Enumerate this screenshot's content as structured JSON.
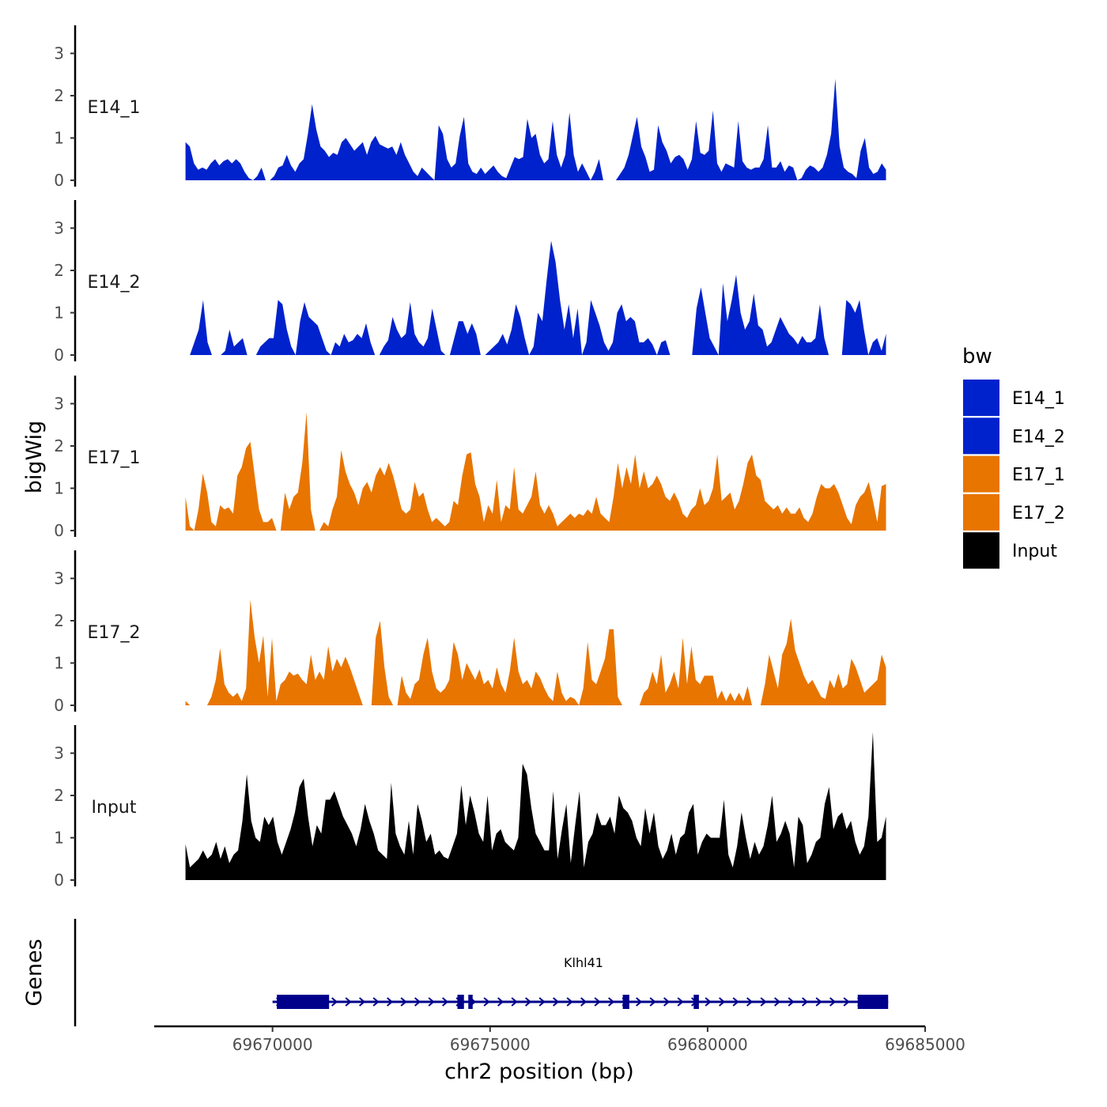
{
  "chart_data": {
    "type": "area",
    "title": "",
    "ylabel": "bigWig",
    "xlabel": "chr2 position (bp)",
    "genes_label": "Genes",
    "gene_name": "Klhl41",
    "x_range": [
      69667280,
      69685000
    ],
    "data_x_range": [
      69668000,
      69684100
    ],
    "ylim": [
      0,
      3.6
    ],
    "y_ticks": [
      0,
      1,
      2,
      3
    ],
    "x_ticks": [
      69670000,
      69675000,
      69680000,
      69685000
    ],
    "x_tick_labels": [
      "69670000",
      "69675000",
      "69680000",
      "69685000"
    ],
    "legend": {
      "title": "bw",
      "entries": [
        {
          "label": "E14_1",
          "color": "#0022CC"
        },
        {
          "label": "E14_2",
          "color": "#0022CC"
        },
        {
          "label": "E17_1",
          "color": "#E87500"
        },
        {
          "label": "E17_2",
          "color": "#E87500"
        },
        {
          "label": "Input",
          "color": "#000000"
        }
      ]
    },
    "series": [
      {
        "name": "E14_1",
        "color": "#0022CC",
        "values": [
          0.9,
          0.8,
          0.4,
          0.25,
          0.3,
          0.25,
          0.4,
          0.5,
          0.35,
          0.45,
          0.5,
          0.4,
          0.5,
          0.4,
          0.2,
          0.05,
          0,
          0.1,
          0.3,
          0,
          0,
          0.1,
          0.3,
          0.35,
          0.6,
          0.35,
          0.2,
          0.4,
          0.5,
          1.1,
          1.8,
          1.2,
          0.8,
          0.7,
          0.55,
          0.65,
          0.6,
          0.9,
          1,
          0.85,
          0.7,
          0.8,
          0.9,
          0.6,
          0.9,
          1.05,
          0.85,
          0.8,
          0.75,
          0.8,
          0.6,
          0.9,
          0.6,
          0.4,
          0.2,
          0.1,
          0.3,
          0.2,
          0.1,
          0,
          1.3,
          1.1,
          0.5,
          0.3,
          0.4,
          1.05,
          1.5,
          0.4,
          0.2,
          0.15,
          0.3,
          0.15,
          0.25,
          0.35,
          0.2,
          0.1,
          0.05,
          0.3,
          0.55,
          0.5,
          0.55,
          1.45,
          1,
          1.1,
          0.6,
          0.4,
          0.5,
          1.4,
          0.6,
          0.3,
          0.6,
          1.6,
          0.6,
          0.2,
          0.4,
          0.2,
          0,
          0.2,
          0.5,
          0,
          0,
          0,
          0,
          0.15,
          0.3,
          0.6,
          1.05,
          1.5,
          0.8,
          0.55,
          0.2,
          0.25,
          1.3,
          0.9,
          0.7,
          0.4,
          0.55,
          0.6,
          0.5,
          0.25,
          0.5,
          1.4,
          0.65,
          0.6,
          0.7,
          1.65,
          0.4,
          0.2,
          0.4,
          0.35,
          0.3,
          1.4,
          0.45,
          0.3,
          0.25,
          0.3,
          0.3,
          0.5,
          1.3,
          0.3,
          0.3,
          0.45,
          0.2,
          0.35,
          0.3,
          0,
          0.05,
          0.25,
          0.35,
          0.3,
          0.2,
          0.3,
          0.6,
          1.1,
          2.4,
          0.8,
          0.3,
          0.2,
          0.15,
          0.05,
          0.7,
          1,
          0.3,
          0.15,
          0.2,
          0.4,
          0.25
        ]
      },
      {
        "name": "E14_2",
        "color": "#0022CC",
        "values": [
          0,
          0,
          0.3,
          0.6,
          1.3,
          0.3,
          0,
          0,
          0,
          0.1,
          0.6,
          0.2,
          0.3,
          0.4,
          0,
          0,
          0,
          0.2,
          0.3,
          0.4,
          0.4,
          1.3,
          1.2,
          0.6,
          0.2,
          0,
          0.8,
          1.25,
          0.9,
          0.8,
          0.7,
          0.4,
          0.1,
          0,
          0.3,
          0.2,
          0.5,
          0.3,
          0.35,
          0.5,
          0.4,
          0.75,
          0.3,
          0,
          0,
          0.2,
          0.35,
          0.9,
          0.6,
          0.4,
          0.5,
          1.25,
          0.5,
          0.3,
          0.2,
          0.4,
          1.1,
          0.6,
          0.1,
          0,
          0,
          0.4,
          0.8,
          0.8,
          0.5,
          0.75,
          0.5,
          0,
          0,
          0.1,
          0.2,
          0.3,
          0.5,
          0.25,
          0.6,
          1.2,
          0.9,
          0.4,
          0,
          0.2,
          1,
          0.8,
          1.8,
          2.7,
          2.2,
          1.3,
          0.6,
          1.2,
          0.4,
          1.1,
          0,
          0.3,
          1.3,
          1,
          0.7,
          0.3,
          0.1,
          0.3,
          1,
          1.2,
          0.8,
          0.9,
          0.8,
          0.3,
          0.3,
          0.4,
          0.25,
          0,
          0.3,
          0.35,
          0,
          0,
          0,
          0,
          0,
          0,
          1.1,
          1.6,
          1,
          0.4,
          0.2,
          0,
          1.7,
          0.8,
          1.3,
          1.9,
          1,
          0.6,
          0.8,
          1.45,
          0.7,
          0.6,
          0.2,
          0.3,
          0.6,
          0.9,
          0.7,
          0.5,
          0.4,
          0.25,
          0.45,
          0.3,
          0.3,
          0.4,
          1.2,
          0.4,
          0,
          0,
          0,
          0,
          1.3,
          1.2,
          1,
          1.3,
          0.6,
          0,
          0.3,
          0.4,
          0.1,
          0.5
        ]
      },
      {
        "name": "E17_1",
        "color": "#E87500",
        "values": [
          0.8,
          0.1,
          0,
          0.5,
          1.35,
          0.9,
          0.2,
          0.1,
          0.6,
          0.5,
          0.55,
          0.4,
          1.3,
          1.5,
          1.95,
          2.1,
          1.3,
          0.5,
          0.2,
          0.2,
          0.3,
          0,
          0,
          0.9,
          0.5,
          0.8,
          0.9,
          1.6,
          2.8,
          0.5,
          0,
          0,
          0.2,
          0.1,
          0.5,
          0.8,
          1.9,
          1.4,
          1.1,
          0.9,
          0.6,
          1,
          1.15,
          0.9,
          1.3,
          1.5,
          1.3,
          1.6,
          1.3,
          0.9,
          0.5,
          0.4,
          0.5,
          1.15,
          0.8,
          0.9,
          0.5,
          0.2,
          0.3,
          0.2,
          0.1,
          0.2,
          0.7,
          0.6,
          1.3,
          1.8,
          1.85,
          1.1,
          0.8,
          0.2,
          0.6,
          0.4,
          1.2,
          0.2,
          0.6,
          0.5,
          1.5,
          0.5,
          0.4,
          0.6,
          0.8,
          1.4,
          0.6,
          0.4,
          0.6,
          0.4,
          0.1,
          0.2,
          0.3,
          0.4,
          0.3,
          0.4,
          0.35,
          0.5,
          0.4,
          0.8,
          0.4,
          0.3,
          0.2,
          0.8,
          1.6,
          1,
          1.5,
          1.1,
          1.8,
          1,
          1.4,
          1,
          1.1,
          1.3,
          1.1,
          0.8,
          0.7,
          0.9,
          0.7,
          0.4,
          0.3,
          0.5,
          0.6,
          1,
          0.6,
          0.7,
          1,
          1.8,
          0.7,
          0.8,
          0.9,
          0.5,
          0.7,
          1.1,
          1.6,
          1.8,
          1.3,
          1.2,
          0.7,
          0.6,
          0.5,
          0.6,
          0.4,
          0.55,
          0.4,
          0.4,
          0.55,
          0.3,
          0.2,
          0.4,
          0.8,
          1.1,
          1,
          1,
          1.1,
          0.9,
          0.6,
          0.3,
          0.15,
          0.6,
          0.8,
          0.9,
          1.15,
          0.7,
          0.2,
          1.05,
          1.1
        ]
      },
      {
        "name": "E17_2",
        "color": "#E87500",
        "values": [
          0.1,
          0,
          0,
          0,
          0,
          0,
          0.2,
          0.6,
          1.35,
          0.5,
          0.3,
          0.2,
          0.3,
          0.1,
          0.4,
          2.5,
          1.6,
          1,
          1.65,
          0.2,
          1.6,
          0.1,
          0.5,
          0.6,
          0.8,
          0.7,
          0.75,
          0.6,
          0.5,
          1.2,
          0.6,
          0.8,
          0.6,
          1.4,
          0.8,
          1.1,
          0.9,
          1.15,
          0.9,
          0.6,
          0.3,
          0,
          0,
          0,
          1.6,
          2,
          0.9,
          0.2,
          0,
          0,
          0.7,
          0.3,
          0.15,
          0.5,
          0.6,
          1.2,
          1.6,
          0.8,
          0.4,
          0.3,
          0.4,
          0.6,
          1.5,
          1.2,
          0.6,
          1,
          0.8,
          0.6,
          0.85,
          0.5,
          0.6,
          0.4,
          0.9,
          0.5,
          0.3,
          0.8,
          1.6,
          0.8,
          0.5,
          0.6,
          0.4,
          0.8,
          0.65,
          0.4,
          0.2,
          0.1,
          0.8,
          0.3,
          0.1,
          0.2,
          0.15,
          0,
          0.4,
          1.5,
          0.6,
          0.5,
          0.8,
          1.1,
          1.8,
          1.8,
          0.2,
          0,
          0,
          0,
          0,
          0,
          0.3,
          0.4,
          0.8,
          0.5,
          1.2,
          0.3,
          0.5,
          0.8,
          0.4,
          1.6,
          0.5,
          1.4,
          0.6,
          0.5,
          0.7,
          0.7,
          0.7,
          0.15,
          0.35,
          0.1,
          0.3,
          0.1,
          0.3,
          0.1,
          0.45,
          0,
          0,
          0,
          0.5,
          1.2,
          0.8,
          0.4,
          1.2,
          1.45,
          2.05,
          1.3,
          1,
          0.7,
          0.5,
          0.6,
          0.4,
          0.2,
          0.15,
          0.6,
          0.4,
          0.75,
          0.4,
          0.5,
          1.1,
          0.9,
          0.6,
          0.3,
          0.4,
          0.5,
          0.6,
          1.2,
          0.9
        ]
      },
      {
        "name": "Input",
        "color": "#000000",
        "values": [
          0.85,
          0.3,
          0.4,
          0.5,
          0.7,
          0.5,
          0.6,
          0.9,
          0.5,
          0.8,
          0.4,
          0.6,
          0.7,
          1.4,
          2.5,
          1.4,
          1,
          0.9,
          1.5,
          1.3,
          1.5,
          0.9,
          0.6,
          0.9,
          1.2,
          1.6,
          2.2,
          2.4,
          1.5,
          0.8,
          1.3,
          1.1,
          1.9,
          1.9,
          2.1,
          1.8,
          1.5,
          1.3,
          1.1,
          0.8,
          1.2,
          1.8,
          1.4,
          1.1,
          0.7,
          0.6,
          0.5,
          2.3,
          1.1,
          0.8,
          0.6,
          1.4,
          0.6,
          1.8,
          1.4,
          0.9,
          1.1,
          0.6,
          0.7,
          0.55,
          0.5,
          0.8,
          1.1,
          2.25,
          1.3,
          2,
          1.6,
          1.1,
          0.9,
          2,
          0.7,
          1.1,
          1.2,
          0.9,
          0.8,
          0.7,
          1,
          2.75,
          2.5,
          1.7,
          1.1,
          0.9,
          0.7,
          0.7,
          2.1,
          0.5,
          1.2,
          1.8,
          0.4,
          1.3,
          2.1,
          0.3,
          0.9,
          1.1,
          1.6,
          1.3,
          1.3,
          1.5,
          1.1,
          2,
          1.7,
          1.6,
          1.4,
          1,
          0.8,
          1.7,
          1.1,
          1.6,
          0.8,
          0.5,
          0.7,
          1.1,
          0.6,
          1,
          1.1,
          1.6,
          1.8,
          0.6,
          0.9,
          1.1,
          1,
          1,
          1,
          1.9,
          0.6,
          0.3,
          0.8,
          1.6,
          1,
          0.5,
          0.9,
          0.6,
          0.8,
          1.3,
          2,
          0.9,
          1.1,
          1.4,
          1.1,
          0.3,
          1.5,
          1.3,
          0.4,
          0.6,
          0.9,
          1,
          1.8,
          2.2,
          1.2,
          1.5,
          1.6,
          1.2,
          1.4,
          0.9,
          0.6,
          0.8,
          1.5,
          3.5,
          0.9,
          1,
          1.5
        ]
      }
    ],
    "gene_track": {
      "name": "Klhl41",
      "strand": "+",
      "start": 69670000,
      "end": 69684150,
      "exons": [
        {
          "start": 69670100,
          "end": 69671300
        },
        {
          "start": 69674250,
          "end": 69674400
        },
        {
          "start": 69674500,
          "end": 69674600
        },
        {
          "start": 69678050,
          "end": 69678200
        },
        {
          "start": 69679680,
          "end": 69679800
        },
        {
          "start": 69683450,
          "end": 69684150
        }
      ]
    }
  }
}
